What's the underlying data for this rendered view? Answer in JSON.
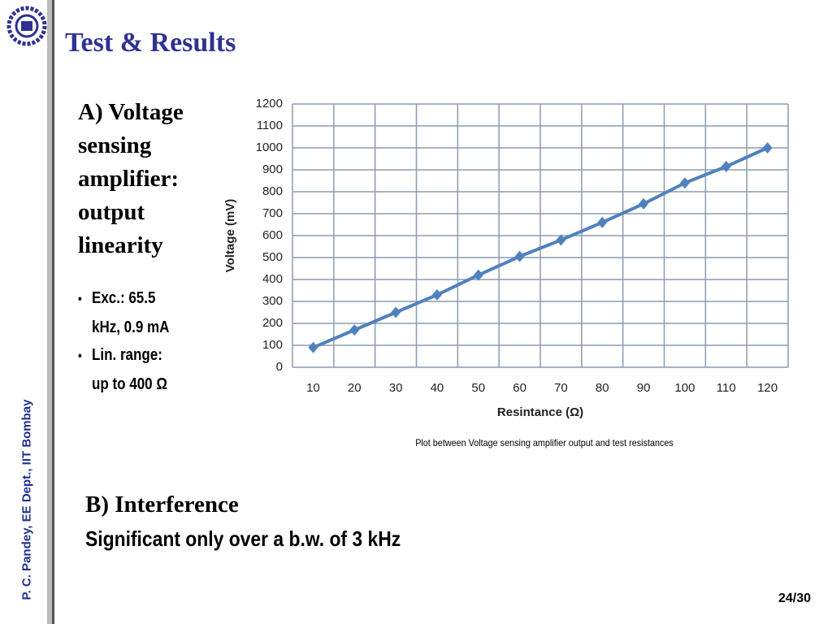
{
  "slide": {
    "title": "Test & Results",
    "heading_a": "A) Voltage sensing amplifier: output linearity",
    "bullets": [
      "Exc.: 65.5 kHz, 0.9 mA",
      "Lin. range: up to 400 Ω"
    ],
    "caption": "Plot between Voltage sensing amplifier output and test resistances",
    "heading_b": "B) Interference",
    "text_b": "Significant only over a b.w. of 3 kHz",
    "sidebar": "P. C. Pandey, EE Dept., IIT Bombay",
    "page": "24/30"
  },
  "chart_data": {
    "type": "line",
    "x_label": "Resintance (Ω)",
    "y_label": "Voltage (mV)",
    "categories": [
      "10",
      "20",
      "30",
      "40",
      "50",
      "60",
      "70",
      "80",
      "90",
      "100",
      "110",
      "120"
    ],
    "series": [
      {
        "name": "Voltage",
        "color": "#4f81bd",
        "values": [
          90,
          170,
          250,
          330,
          420,
          505,
          580,
          660,
          745,
          840,
          915,
          1000
        ]
      }
    ],
    "ylim": [
      0,
      1200
    ],
    "yticks": [
      0,
      100,
      200,
      300,
      400,
      500,
      600,
      700,
      800,
      900,
      1000,
      1100,
      1200
    ],
    "grid": true
  }
}
